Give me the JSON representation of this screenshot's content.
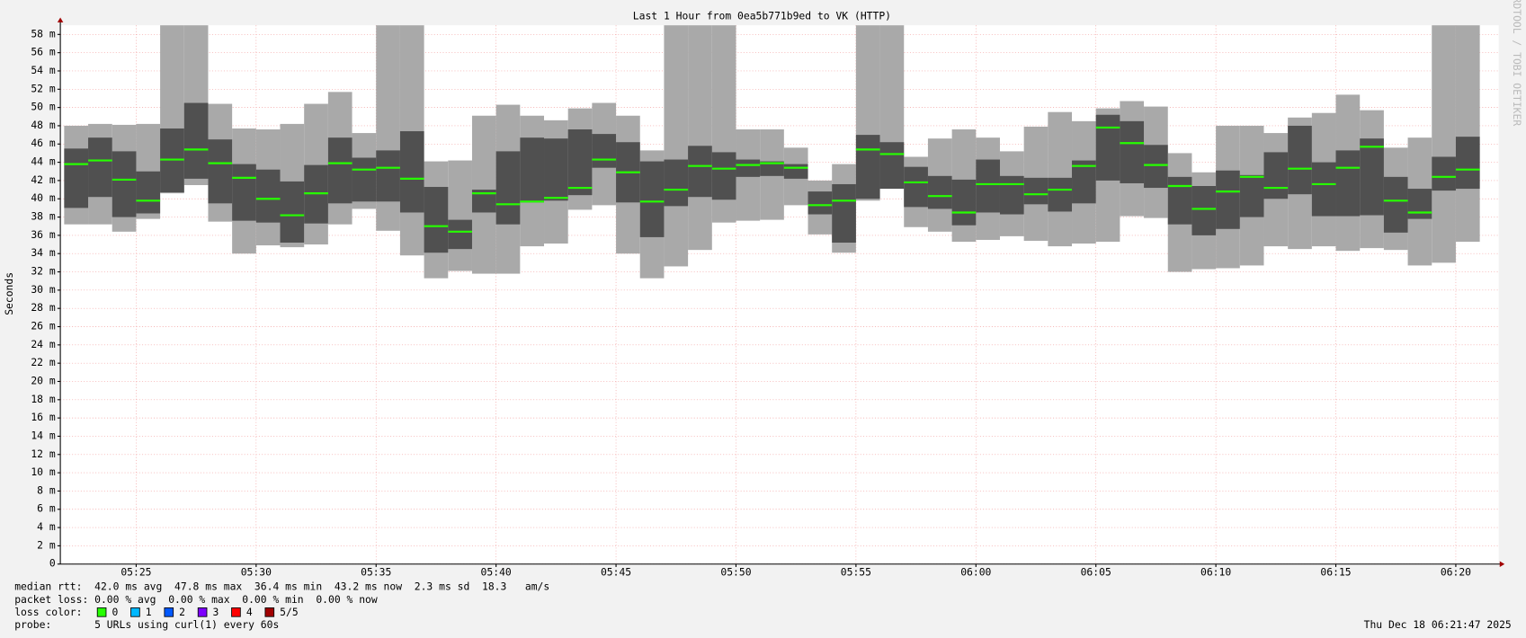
{
  "chart_data": {
    "type": "smokeping",
    "title": "Last 1 Hour from 0ea5b771b9ed to VK (HTTP)",
    "ylabel": "Seconds",
    "x": [
      322,
      323,
      324,
      325,
      326,
      327,
      328,
      329,
      330,
      331,
      332,
      333,
      334,
      335,
      336,
      337,
      338,
      339,
      340,
      341,
      342,
      343,
      344,
      345,
      346,
      347,
      348,
      349,
      350,
      351,
      352,
      353,
      354,
      355,
      356,
      357,
      358,
      359,
      360,
      361,
      362,
      363,
      364,
      365,
      366,
      367,
      368,
      369,
      370,
      371,
      372,
      373,
      374,
      375,
      376,
      377,
      378,
      379,
      380
    ],
    "xlim": [
      321.84,
      381.79
    ],
    "xticks": [
      {
        "value": 325,
        "label": "05:25"
      },
      {
        "value": 330,
        "label": "05:30"
      },
      {
        "value": 335,
        "label": "05:35"
      },
      {
        "value": 340,
        "label": "05:40"
      },
      {
        "value": 345,
        "label": "05:45"
      },
      {
        "value": 350,
        "label": "05:50"
      },
      {
        "value": 355,
        "label": "05:55"
      },
      {
        "value": 360,
        "label": "06:00"
      },
      {
        "value": 365,
        "label": "06:05"
      },
      {
        "value": 370,
        "label": "06:10"
      },
      {
        "value": 375,
        "label": "06:15"
      },
      {
        "value": 380,
        "label": "06:20"
      }
    ],
    "ylim": [
      0,
      0.059
    ],
    "yticks": [
      {
        "value": 0,
        "label": "0"
      },
      {
        "value": 0.002,
        "label": "2 m"
      },
      {
        "value": 0.004,
        "label": "4 m"
      },
      {
        "value": 0.006,
        "label": "6 m"
      },
      {
        "value": 0.008,
        "label": "8 m"
      },
      {
        "value": 0.01,
        "label": "10 m"
      },
      {
        "value": 0.012,
        "label": "12 m"
      },
      {
        "value": 0.014,
        "label": "14 m"
      },
      {
        "value": 0.016,
        "label": "16 m"
      },
      {
        "value": 0.018,
        "label": "18 m"
      },
      {
        "value": 0.02,
        "label": "20 m"
      },
      {
        "value": 0.022,
        "label": "22 m"
      },
      {
        "value": 0.024,
        "label": "24 m"
      },
      {
        "value": 0.026,
        "label": "26 m"
      },
      {
        "value": 0.028,
        "label": "28 m"
      },
      {
        "value": 0.03,
        "label": "30 m"
      },
      {
        "value": 0.032,
        "label": "32 m"
      },
      {
        "value": 0.034,
        "label": "34 m"
      },
      {
        "value": 0.036,
        "label": "36 m"
      },
      {
        "value": 0.038,
        "label": "38 m"
      },
      {
        "value": 0.04,
        "label": "40 m"
      },
      {
        "value": 0.042,
        "label": "42 m"
      },
      {
        "value": 0.044,
        "label": "44 m"
      },
      {
        "value": 0.046,
        "label": "46 m"
      },
      {
        "value": 0.048,
        "label": "48 m"
      },
      {
        "value": 0.05,
        "label": "50 m"
      },
      {
        "value": 0.052,
        "label": "52 m"
      },
      {
        "value": 0.054,
        "label": "54 m"
      },
      {
        "value": 0.056,
        "label": "56 m"
      },
      {
        "value": 0.058,
        "label": "58 m"
      }
    ],
    "grid": true,
    "series": [
      {
        "color": "#a9a9a9",
        "low": [
          0.0372,
          0.0372,
          0.0364,
          0.0378,
          0.0406,
          0.0415,
          0.0375,
          0.034,
          0.0349,
          0.0347,
          0.035,
          0.0372,
          0.0389,
          0.0365,
          0.0338,
          0.0313,
          0.0321,
          0.0318,
          0.0318,
          0.0348,
          0.0351,
          0.0388,
          0.0393,
          0.034,
          0.0313,
          0.0326,
          0.0344,
          0.0374,
          0.0376,
          0.0377,
          0.0393,
          0.0361,
          0.0341,
          0.0398,
          0.0411,
          0.0369,
          0.0364,
          0.0353,
          0.0355,
          0.0359,
          0.0354,
          0.0348,
          0.0351,
          0.0353,
          0.0381,
          0.0379,
          0.032,
          0.0323,
          0.0324,
          0.0327,
          0.0348,
          0.0345,
          0.0348,
          0.0343,
          0.0346,
          0.0344,
          0.0327,
          0.033,
          0.0353
        ],
        "high": [
          0.048,
          0.0482,
          0.0481,
          0.0482,
          0.059,
          0.059,
          0.0504,
          0.0477,
          0.0476,
          0.0482,
          0.0504,
          0.0517,
          0.0472,
          0.059,
          0.059,
          0.0441,
          0.0442,
          0.0491,
          0.0503,
          0.0491,
          0.0486,
          0.0499,
          0.0505,
          0.0491,
          0.0453,
          0.059,
          0.059,
          0.059,
          0.0476,
          0.0476,
          0.0456,
          0.042,
          0.0438,
          0.059,
          0.059,
          0.0446,
          0.0466,
          0.0476,
          0.0467,
          0.0452,
          0.0479,
          0.0495,
          0.0485,
          0.0499,
          0.0507,
          0.0501,
          0.045,
          0.0429,
          0.048,
          0.048,
          0.0472,
          0.0489,
          0.0494,
          0.0514,
          0.0497,
          0.0456,
          0.0467,
          0.059,
          0.059
        ]
      },
      {
        "color": "#505050",
        "low": [
          0.039,
          0.0402,
          0.038,
          0.0384,
          0.0407,
          0.0422,
          0.0395,
          0.0376,
          0.0374,
          0.0352,
          0.0373,
          0.0395,
          0.0397,
          0.0397,
          0.0385,
          0.0341,
          0.0345,
          0.0385,
          0.0372,
          0.0396,
          0.0398,
          0.0404,
          0.0434,
          0.0396,
          0.0358,
          0.0392,
          0.0402,
          0.0399,
          0.0424,
          0.0425,
          0.0422,
          0.0383,
          0.0352,
          0.04,
          0.0411,
          0.0391,
          0.0389,
          0.0371,
          0.0385,
          0.0383,
          0.0394,
          0.0386,
          0.0395,
          0.042,
          0.0417,
          0.0412,
          0.0372,
          0.036,
          0.0367,
          0.038,
          0.04,
          0.0405,
          0.0381,
          0.0381,
          0.0382,
          0.0363,
          0.0378,
          0.0409,
          0.0411
        ],
        "high": [
          0.0455,
          0.0467,
          0.0452,
          0.043,
          0.0477,
          0.0505,
          0.0465,
          0.0438,
          0.0432,
          0.0419,
          0.0437,
          0.0467,
          0.0445,
          0.0453,
          0.0474,
          0.0413,
          0.0377,
          0.041,
          0.0452,
          0.0467,
          0.0466,
          0.0476,
          0.0471,
          0.0462,
          0.0441,
          0.0443,
          0.0458,
          0.0451,
          0.0443,
          0.0441,
          0.0438,
          0.0408,
          0.0416,
          0.047,
          0.0462,
          0.0435,
          0.0425,
          0.0421,
          0.0443,
          0.0425,
          0.0423,
          0.0423,
          0.0442,
          0.0492,
          0.0485,
          0.0459,
          0.0424,
          0.0414,
          0.0431,
          0.0426,
          0.0451,
          0.048,
          0.044,
          0.0453,
          0.0466,
          0.0424,
          0.0411,
          0.0446,
          0.0468
        ]
      },
      {
        "color": "#26ff00",
        "values": [
          0.0438,
          0.0442,
          0.0421,
          0.0398,
          0.0443,
          0.0454,
          0.0439,
          0.0423,
          0.04,
          0.0382,
          0.0406,
          0.0439,
          0.0432,
          0.0434,
          0.0422,
          0.037,
          0.0364,
          0.0406,
          0.0394,
          0.0397,
          0.0401,
          0.0412,
          0.0443,
          0.0429,
          0.0397,
          0.041,
          0.0436,
          0.0433,
          0.0437,
          0.0439,
          0.0434,
          0.0393,
          0.0398,
          0.0454,
          0.0449,
          0.0418,
          0.0403,
          0.0385,
          0.0416,
          0.0416,
          0.0405,
          0.041,
          0.0436,
          0.0478,
          0.0461,
          0.0437,
          0.0414,
          0.0389,
          0.0408,
          0.0424,
          0.0412,
          0.0433,
          0.0416,
          0.0434,
          0.0457,
          0.0398,
          0.0385,
          0.0424,
          0.0432
        ]
      }
    ],
    "median_rtt": "median rtt:  42.0 ms avg  47.8 ms max  36.4 ms min  43.2 ms now  2.3 ms sd  18.3   am/s",
    "packet_loss": "packet loss: 0.00 % avg  0.00 % max  0.00 % min  0.00 % now",
    "loss_label": "loss color:",
    "loss_colors": [
      {
        "label": "0",
        "color": "#26ff00"
      },
      {
        "label": "1",
        "color": "#00b8ff"
      },
      {
        "label": "2",
        "color": "#0059ff"
      },
      {
        "label": "3",
        "color": "#7e00ff"
      },
      {
        "label": "4",
        "color": "#ff0000"
      },
      {
        "label": "5/5",
        "color": "#a10000"
      }
    ],
    "probe": "probe:       5 URLs using curl(1) every 60s",
    "date": "Thu Dec 18 06:21:47 2025",
    "watermark": "RRDTOOL / TOBI OETIKER"
  }
}
